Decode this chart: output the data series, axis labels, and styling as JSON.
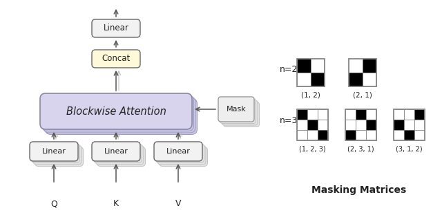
{
  "bg_color": "#ffffff",
  "box_color_linear": "#f2f2f2",
  "box_color_concat": "#fef9d9",
  "box_color_blockwise": "#d8d4ee",
  "box_color_blockwise_shadow": "#ccc8e4",
  "box_stroke_dark": "#666666",
  "box_stroke_light": "#aaaaaa",
  "arrow_color": "#555555",
  "shadow_fc": "#e4e4e4",
  "shadow_ec": "#bbbbbb",
  "mask_fc": "#eeeeee",
  "mask_ec": "#999999",
  "text_color": "#222222",
  "n2_matrix_1": [
    [
      1,
      0
    ],
    [
      0,
      1
    ]
  ],
  "n2_matrix_2": [
    [
      0,
      1
    ],
    [
      1,
      0
    ]
  ],
  "n3_matrix_1": [
    [
      1,
      0,
      0
    ],
    [
      0,
      1,
      0
    ],
    [
      0,
      0,
      1
    ]
  ],
  "n3_matrix_2": [
    [
      0,
      1,
      0
    ],
    [
      0,
      0,
      1
    ],
    [
      1,
      0,
      0
    ]
  ],
  "n3_matrix_3": [
    [
      0,
      0,
      1
    ],
    [
      1,
      0,
      0
    ],
    [
      0,
      1,
      0
    ]
  ],
  "n2_labels": [
    "(1, 2)",
    "(2, 1)"
  ],
  "n3_labels": [
    "(1, 2, 3)",
    "(2, 3, 1)",
    "(3, 1, 2)"
  ],
  "section_label_n2": "n=2",
  "section_label_n3": "n=3",
  "title": "Masking Matrices",
  "label_Q": "Q",
  "label_K": "K",
  "label_V": "V",
  "label_linear": "Linear",
  "label_concat": "Concat",
  "label_blockwise": "Blockwise Attention",
  "label_mask": "Mask"
}
